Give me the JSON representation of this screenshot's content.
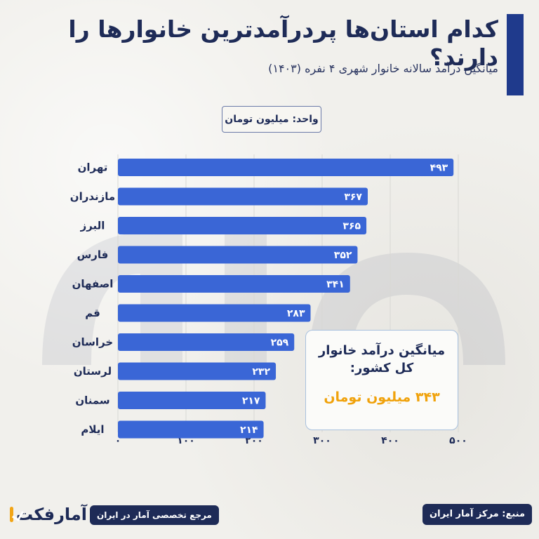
{
  "header": {
    "title": "کدام استان‌ها پردرآمدترین خانوارها را دارند؟",
    "subtitle": "میانگین درآمد سالانه خانوار شهری ۴ نفره (۱۴۰۳)"
  },
  "unit_label": "واحد: میلیون تومان",
  "average_box": {
    "title": "میانگین درآمد خانوار کل کشور:",
    "value": "۳۴۳ میلیون تومان"
  },
  "footer": {
    "source": "منبع: مرکز آمار ایران",
    "reference": "مرجع تخصصی آمار در ایران",
    "logo_text": "آمارفکت"
  },
  "colors": {
    "bar": "#3a66d6",
    "text": "#1e2b57",
    "accent": "#f0a20c",
    "title_bar": "#1f3a8c"
  },
  "chart_data": {
    "type": "bar",
    "orientation": "horizontal",
    "categories": [
      "تهران",
      "مازندران",
      "البرز",
      "فارس",
      "اصفهان",
      "قم",
      "خراسان",
      "لرستان",
      "سمنان",
      "ایلام"
    ],
    "values": [
      493,
      367,
      365,
      352,
      341,
      283,
      259,
      232,
      217,
      214
    ],
    "value_labels": [
      "۴۹۳",
      "۳۶۷",
      "۳۶۵",
      "۳۵۲",
      "۳۴۱",
      "۲۸۳",
      "۲۵۹",
      "۲۳۲",
      "۲۱۷",
      "۲۱۴"
    ],
    "xlim": [
      0,
      500
    ],
    "x_ticks": [
      0,
      100,
      200,
      300,
      400,
      500
    ],
    "x_tick_labels": [
      "۰",
      "۱۰۰",
      "۲۰۰",
      "۳۰۰",
      "۴۰۰",
      "۵۰۰"
    ],
    "grid": true,
    "title": "",
    "xlabel": "",
    "ylabel": ""
  }
}
